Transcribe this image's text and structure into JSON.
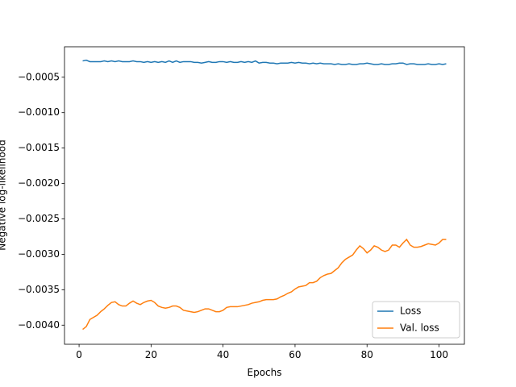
{
  "chart_data": {
    "type": "line",
    "xlabel": "Epochs",
    "ylabel": "Negative log-likelihood",
    "x": [
      1,
      2,
      3,
      4,
      5,
      6,
      7,
      8,
      9,
      10,
      11,
      12,
      13,
      14,
      15,
      16,
      17,
      18,
      19,
      20,
      21,
      22,
      23,
      24,
      25,
      26,
      27,
      28,
      29,
      30,
      31,
      32,
      33,
      34,
      35,
      36,
      37,
      38,
      39,
      40,
      41,
      42,
      43,
      44,
      45,
      46,
      47,
      48,
      49,
      50,
      51,
      52,
      53,
      54,
      55,
      56,
      57,
      58,
      59,
      60,
      61,
      62,
      63,
      64,
      65,
      66,
      67,
      68,
      69,
      70,
      71,
      72,
      73,
      74,
      75,
      76,
      77,
      78,
      79,
      80,
      81,
      82,
      83,
      84,
      85,
      86,
      87,
      88,
      89,
      90,
      91,
      92,
      93,
      94,
      95,
      96,
      97,
      98,
      99,
      100,
      101,
      102
    ],
    "series": [
      {
        "name": "Loss",
        "color": "#1f77b4",
        "values": [
          -0.00027,
          -0.00026,
          -0.00028,
          -0.00028,
          -0.00028,
          -0.00028,
          -0.00027,
          -0.00028,
          -0.00027,
          -0.00028,
          -0.00027,
          -0.00028,
          -0.00028,
          -0.00028,
          -0.00027,
          -0.00028,
          -0.00028,
          -0.00029,
          -0.00028,
          -0.00029,
          -0.00028,
          -0.00029,
          -0.00028,
          -0.00029,
          -0.00027,
          -0.00029,
          -0.00027,
          -0.00029,
          -0.00028,
          -0.00028,
          -0.00028,
          -0.00029,
          -0.00029,
          -0.0003,
          -0.00029,
          -0.00028,
          -0.00029,
          -0.00029,
          -0.00028,
          -0.00028,
          -0.00029,
          -0.00028,
          -0.00029,
          -0.00029,
          -0.00028,
          -0.00029,
          -0.00028,
          -0.00029,
          -0.00027,
          -0.0003,
          -0.00029,
          -0.00029,
          -0.0003,
          -0.0003,
          -0.00031,
          -0.0003,
          -0.0003,
          -0.0003,
          -0.00029,
          -0.0003,
          -0.00029,
          -0.0003,
          -0.0003,
          -0.00031,
          -0.0003,
          -0.00031,
          -0.0003,
          -0.00031,
          -0.00031,
          -0.00031,
          -0.00032,
          -0.00031,
          -0.00032,
          -0.00032,
          -0.00031,
          -0.00032,
          -0.00032,
          -0.00031,
          -0.00031,
          -0.0003,
          -0.00031,
          -0.00032,
          -0.00032,
          -0.00031,
          -0.00032,
          -0.00032,
          -0.00031,
          -0.00031,
          -0.0003,
          -0.0003,
          -0.00032,
          -0.00031,
          -0.00031,
          -0.00032,
          -0.00032,
          -0.00032,
          -0.00031,
          -0.00032,
          -0.00032,
          -0.00031,
          -0.00032,
          -0.00031
        ]
      },
      {
        "name": "Val. loss",
        "color": "#ff7f0e",
        "values": [
          -0.00406,
          -0.00402,
          -0.00392,
          -0.00389,
          -0.00386,
          -0.00381,
          -0.00377,
          -0.00372,
          -0.00368,
          -0.00367,
          -0.00371,
          -0.00373,
          -0.00373,
          -0.00369,
          -0.00366,
          -0.00369,
          -0.00371,
          -0.00368,
          -0.00366,
          -0.00365,
          -0.00368,
          -0.00373,
          -0.00375,
          -0.00376,
          -0.00375,
          -0.00373,
          -0.00373,
          -0.00375,
          -0.00379,
          -0.0038,
          -0.00381,
          -0.00382,
          -0.00381,
          -0.00379,
          -0.00377,
          -0.00377,
          -0.00379,
          -0.00381,
          -0.00381,
          -0.00379,
          -0.00375,
          -0.00374,
          -0.00374,
          -0.00374,
          -0.00373,
          -0.00372,
          -0.00371,
          -0.00369,
          -0.00368,
          -0.00367,
          -0.00365,
          -0.00364,
          -0.00364,
          -0.00364,
          -0.00363,
          -0.0036,
          -0.00358,
          -0.00355,
          -0.00353,
          -0.00349,
          -0.00346,
          -0.00345,
          -0.00344,
          -0.0034,
          -0.0034,
          -0.00338,
          -0.00333,
          -0.0033,
          -0.00328,
          -0.00327,
          -0.00323,
          -0.00319,
          -0.00312,
          -0.00307,
          -0.00304,
          -0.00301,
          -0.00294,
          -0.00288,
          -0.00292,
          -0.00298,
          -0.00294,
          -0.00288,
          -0.0029,
          -0.00294,
          -0.00296,
          -0.00294,
          -0.00287,
          -0.00287,
          -0.0029,
          -0.00284,
          -0.00279,
          -0.00287,
          -0.0029,
          -0.0029,
          -0.00289,
          -0.00287,
          -0.00285,
          -0.00286,
          -0.00287,
          -0.00284,
          -0.00279,
          -0.00279
        ]
      }
    ],
    "xlim": [
      -4.05,
      107.05
    ],
    "ylim": [
      -0.00427,
      -7e-05
    ],
    "xticks": [
      0,
      20,
      40,
      60,
      80,
      100
    ],
    "yticks": [
      {
        "value": -0.0005,
        "label": "−0.0005"
      },
      {
        "value": -0.001,
        "label": "−0.0010"
      },
      {
        "value": -0.0015,
        "label": "−0.0015"
      },
      {
        "value": -0.002,
        "label": "−0.0020"
      },
      {
        "value": -0.0025,
        "label": "−0.0025"
      },
      {
        "value": -0.003,
        "label": "−0.0030"
      },
      {
        "value": -0.0035,
        "label": "−0.0035"
      },
      {
        "value": -0.004,
        "label": "−0.0040"
      }
    ],
    "legend": "lower right"
  }
}
